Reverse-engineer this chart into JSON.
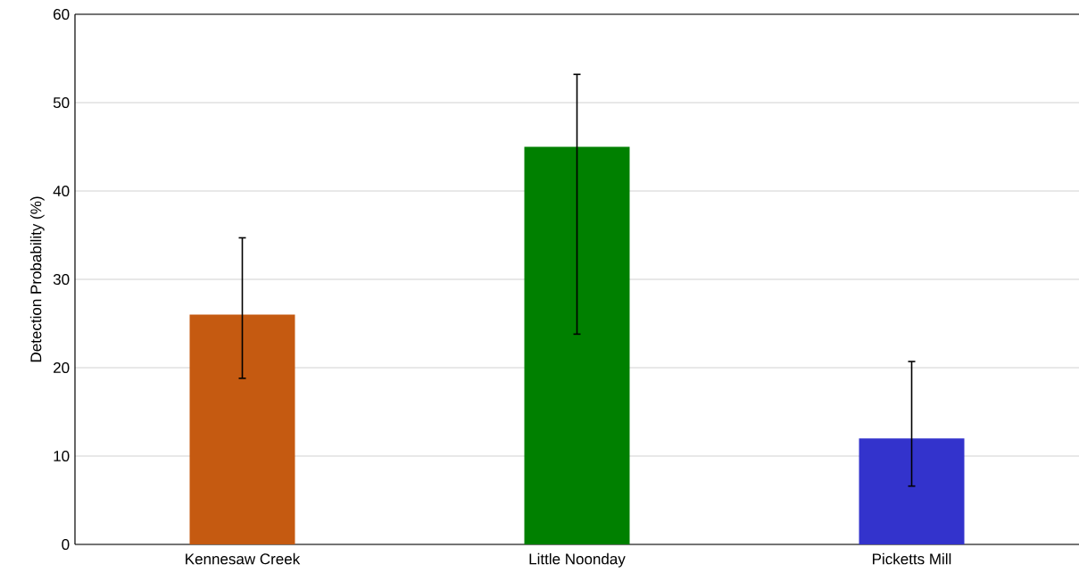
{
  "chart_data": {
    "type": "bar",
    "ylabel": "Detection Probability (%)",
    "categories": [
      "Kennesaw Creek",
      "Little Noonday",
      "Picketts Mill"
    ],
    "values": [
      26,
      45,
      12
    ],
    "colors": [
      "#c55a11",
      "#008000",
      "#3333cc"
    ],
    "errors": [
      [
        18.8,
        34.7
      ],
      [
        23.8,
        53.2
      ],
      [
        6.6,
        20.7
      ]
    ],
    "ylim": [
      0,
      60
    ],
    "yticks": [
      0,
      10,
      20,
      30,
      40,
      50,
      60
    ],
    "grid": "y"
  }
}
